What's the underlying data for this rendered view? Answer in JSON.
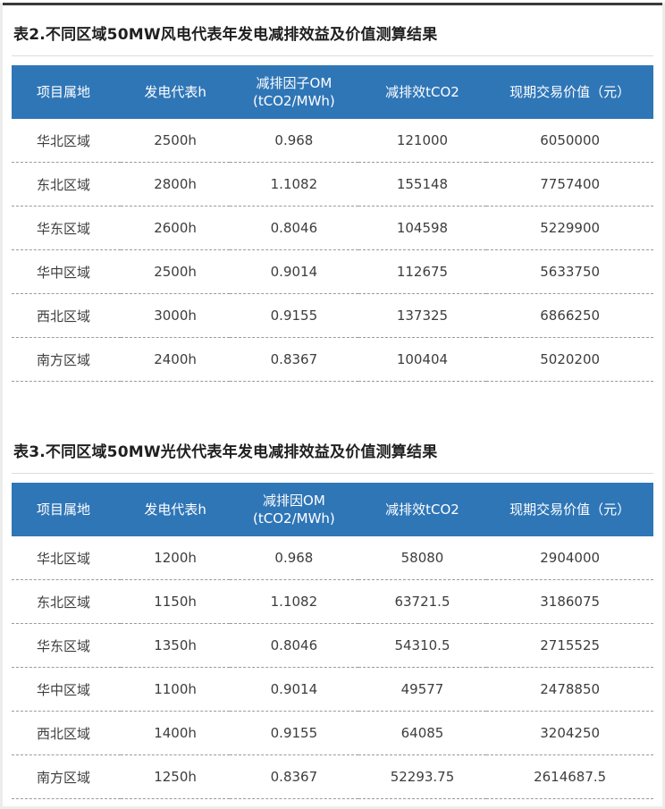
{
  "colors": {
    "header_bg": "#2f76b7",
    "header_text": "#ffffff",
    "row_text": "#3d3d3d",
    "divider": "#9a9a9a",
    "top_rule": "#3a3a3a"
  },
  "tables": [
    {
      "title": "表2.不同区域50MW风电代表年发电减排效益及价值测算结果",
      "headers": [
        "项目属地",
        "发电代表h",
        "减排因子OM\n(tCO2/MWh)",
        "减排效tCO2",
        "现期交易价值（元）"
      ],
      "rows": [
        [
          "华北区域",
          "2500h",
          "0.968",
          "121000",
          "6050000"
        ],
        [
          "东北区域",
          "2800h",
          "1.1082",
          "155148",
          "7757400"
        ],
        [
          "华东区域",
          "2600h",
          "0.8046",
          "104598",
          "5229900"
        ],
        [
          "华中区域",
          "2500h",
          "0.9014",
          "112675",
          "5633750"
        ],
        [
          "西北区域",
          "3000h",
          "0.9155",
          "137325",
          "6866250"
        ],
        [
          "南方区域",
          "2400h",
          "0.8367",
          "100404",
          "5020200"
        ]
      ]
    },
    {
      "title": "表3.不同区域50MW光伏代表年发电减排效益及价值测算结果",
      "headers": [
        "项目属地",
        "发电代表h",
        "减排因OM\n(tCO2/MWh)",
        "减排效tCO2",
        "现期交易价值（元）"
      ],
      "rows": [
        [
          "华北区域",
          "1200h",
          "0.968",
          "58080",
          "2904000"
        ],
        [
          "东北区域",
          "1150h",
          "1.1082",
          "63721.5",
          "3186075"
        ],
        [
          "华东区域",
          "1350h",
          "0.8046",
          "54310.5",
          "2715525"
        ],
        [
          "华中区域",
          "1100h",
          "0.9014",
          "49577",
          "2478850"
        ],
        [
          "西北区域",
          "1400h",
          "0.9155",
          "64085",
          "3204250"
        ],
        [
          "南方区域",
          "1250h",
          "0.8367",
          "52293.75",
          "2614687.5"
        ]
      ]
    }
  ]
}
